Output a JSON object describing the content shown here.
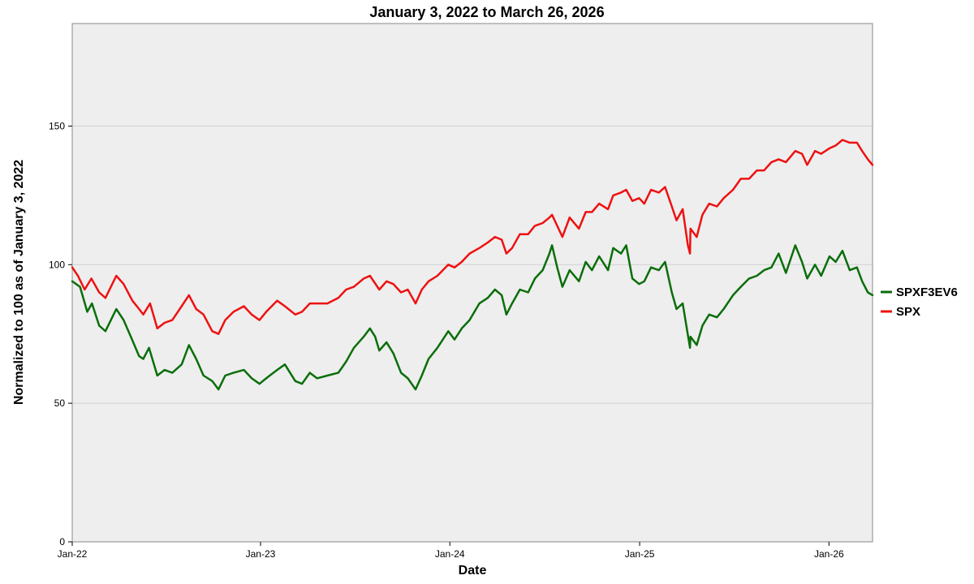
{
  "chart_data": {
    "type": "line",
    "title": "January 3, 2022 to March 26, 2026",
    "xlabel": "Date",
    "ylabel": "Normalized to 100 as of January 3, 2022",
    "ylim": [
      0,
      187
    ],
    "xlim": [
      "2022-01-03",
      "2026-03-26"
    ],
    "yticks": [
      0,
      50,
      100,
      150
    ],
    "xticks": [
      {
        "date": "2022-01-01",
        "label": "Jan-22"
      },
      {
        "date": "2023-01-01",
        "label": "Jan-23"
      },
      {
        "date": "2024-01-01",
        "label": "Jan-24"
      },
      {
        "date": "2025-01-01",
        "label": "Jan-25"
      },
      {
        "date": "2026-01-01",
        "label": "Jan-26"
      }
    ],
    "grid": true,
    "legend_position": "right",
    "plot_background": "#eeeeee",
    "series": [
      {
        "name": "SPXF3EV6",
        "color": "#0a6e0a",
        "points": [
          [
            "2022-01-03",
            94
          ],
          [
            "2022-01-18",
            92
          ],
          [
            "2022-02-01",
            83
          ],
          [
            "2022-02-10",
            86
          ],
          [
            "2022-02-24",
            78
          ],
          [
            "2022-03-08",
            76
          ],
          [
            "2022-03-29",
            84
          ],
          [
            "2022-04-12",
            80
          ],
          [
            "2022-04-26",
            74
          ],
          [
            "2022-05-12",
            67
          ],
          [
            "2022-05-20",
            66
          ],
          [
            "2022-05-31",
            70
          ],
          [
            "2022-06-16",
            60
          ],
          [
            "2022-06-30",
            62
          ],
          [
            "2022-07-15",
            61
          ],
          [
            "2022-08-02",
            64
          ],
          [
            "2022-08-16",
            71
          ],
          [
            "2022-08-30",
            66
          ],
          [
            "2022-09-13",
            60
          ],
          [
            "2022-09-30",
            58
          ],
          [
            "2022-10-12",
            55
          ],
          [
            "2022-10-25",
            60
          ],
          [
            "2022-11-10",
            61
          ],
          [
            "2022-11-30",
            62
          ],
          [
            "2022-12-15",
            59
          ],
          [
            "2022-12-30",
            57
          ],
          [
            "2023-01-12",
            59
          ],
          [
            "2023-02-02",
            62
          ],
          [
            "2023-02-17",
            64
          ],
          [
            "2023-03-09",
            58
          ],
          [
            "2023-03-22",
            57
          ],
          [
            "2023-04-06",
            61
          ],
          [
            "2023-04-20",
            59
          ],
          [
            "2023-05-10",
            60
          ],
          [
            "2023-05-31",
            61
          ],
          [
            "2023-06-15",
            65
          ],
          [
            "2023-06-30",
            70
          ],
          [
            "2023-07-19",
            74
          ],
          [
            "2023-07-31",
            77
          ],
          [
            "2023-08-10",
            74
          ],
          [
            "2023-08-18",
            69
          ],
          [
            "2023-09-01",
            72
          ],
          [
            "2023-09-14",
            68
          ],
          [
            "2023-09-29",
            61
          ],
          [
            "2023-10-12",
            59
          ],
          [
            "2023-10-27",
            55
          ],
          [
            "2023-11-08",
            60
          ],
          [
            "2023-11-21",
            66
          ],
          [
            "2023-12-08",
            70
          ],
          [
            "2023-12-29",
            76
          ],
          [
            "2024-01-10",
            73
          ],
          [
            "2024-01-24",
            77
          ],
          [
            "2024-02-08",
            80
          ],
          [
            "2024-02-27",
            86
          ],
          [
            "2024-03-14",
            88
          ],
          [
            "2024-03-28",
            91
          ],
          [
            "2024-04-10",
            89
          ],
          [
            "2024-04-19",
            82
          ],
          [
            "2024-04-30",
            86
          ],
          [
            "2024-05-15",
            91
          ],
          [
            "2024-05-31",
            90
          ],
          [
            "2024-06-13",
            95
          ],
          [
            "2024-06-28",
            98
          ],
          [
            "2024-07-11",
            104
          ],
          [
            "2024-07-16",
            107
          ],
          [
            "2024-07-26",
            99
          ],
          [
            "2024-08-05",
            92
          ],
          [
            "2024-08-19",
            98
          ],
          [
            "2024-09-06",
            94
          ],
          [
            "2024-09-19",
            101
          ],
          [
            "2024-10-01",
            98
          ],
          [
            "2024-10-15",
            103
          ],
          [
            "2024-11-01",
            98
          ],
          [
            "2024-11-11",
            106
          ],
          [
            "2024-11-26",
            104
          ],
          [
            "2024-12-06",
            107
          ],
          [
            "2024-12-18",
            95
          ],
          [
            "2024-12-31",
            93
          ],
          [
            "2025-01-10",
            94
          ],
          [
            "2025-01-23",
            99
          ],
          [
            "2025-02-07",
            98
          ],
          [
            "2025-02-19",
            101
          ],
          [
            "2025-03-04",
            90
          ],
          [
            "2025-03-13",
            84
          ],
          [
            "2025-03-25",
            86
          ],
          [
            "2025-04-08",
            70
          ],
          [
            "2025-04-09",
            74
          ],
          [
            "2025-04-21",
            71
          ],
          [
            "2025-05-02",
            78
          ],
          [
            "2025-05-15",
            82
          ],
          [
            "2025-05-30",
            81
          ],
          [
            "2025-06-12",
            84
          ],
          [
            "2025-06-30",
            89
          ],
          [
            "2025-07-15",
            92
          ],
          [
            "2025-07-31",
            95
          ],
          [
            "2025-08-15",
            96
          ],
          [
            "2025-08-29",
            98
          ],
          [
            "2025-09-12",
            99
          ],
          [
            "2025-09-26",
            104
          ],
          [
            "2025-10-10",
            97
          ],
          [
            "2025-10-28",
            107
          ],
          [
            "2025-11-10",
            101
          ],
          [
            "2025-11-20",
            95
          ],
          [
            "2025-12-05",
            100
          ],
          [
            "2025-12-17",
            96
          ],
          [
            "2026-01-02",
            103
          ],
          [
            "2026-01-14",
            101
          ],
          [
            "2026-01-27",
            105
          ],
          [
            "2026-02-10",
            98
          ],
          [
            "2026-02-24",
            99
          ],
          [
            "2026-03-06",
            94
          ],
          [
            "2026-03-17",
            90
          ],
          [
            "2026-03-26",
            89
          ]
        ]
      },
      {
        "name": "SPX",
        "color": "#ee1111",
        "points": [
          [
            "2022-01-03",
            99
          ],
          [
            "2022-01-14",
            96
          ],
          [
            "2022-01-27",
            91
          ],
          [
            "2022-02-09",
            95
          ],
          [
            "2022-02-24",
            90
          ],
          [
            "2022-03-08",
            88
          ],
          [
            "2022-03-29",
            96
          ],
          [
            "2022-04-12",
            93
          ],
          [
            "2022-04-29",
            87
          ],
          [
            "2022-05-12",
            84
          ],
          [
            "2022-05-20",
            82
          ],
          [
            "2022-06-02",
            86
          ],
          [
            "2022-06-16",
            77
          ],
          [
            "2022-06-30",
            79
          ],
          [
            "2022-07-15",
            80
          ],
          [
            "2022-08-02",
            85
          ],
          [
            "2022-08-16",
            89
          ],
          [
            "2022-08-30",
            84
          ],
          [
            "2022-09-13",
            82
          ],
          [
            "2022-09-30",
            76
          ],
          [
            "2022-10-12",
            75
          ],
          [
            "2022-10-25",
            80
          ],
          [
            "2022-11-10",
            83
          ],
          [
            "2022-11-30",
            85
          ],
          [
            "2022-12-15",
            82
          ],
          [
            "2022-12-30",
            80
          ],
          [
            "2023-01-12",
            83
          ],
          [
            "2023-02-02",
            87
          ],
          [
            "2023-02-17",
            85
          ],
          [
            "2023-03-09",
            82
          ],
          [
            "2023-03-22",
            83
          ],
          [
            "2023-04-06",
            86
          ],
          [
            "2023-04-20",
            86
          ],
          [
            "2023-05-10",
            86
          ],
          [
            "2023-05-31",
            88
          ],
          [
            "2023-06-15",
            91
          ],
          [
            "2023-06-30",
            92
          ],
          [
            "2023-07-19",
            95
          ],
          [
            "2023-07-31",
            96
          ],
          [
            "2023-08-18",
            91
          ],
          [
            "2023-09-01",
            94
          ],
          [
            "2023-09-14",
            93
          ],
          [
            "2023-09-29",
            90
          ],
          [
            "2023-10-12",
            91
          ],
          [
            "2023-10-27",
            86
          ],
          [
            "2023-11-08",
            91
          ],
          [
            "2023-11-21",
            94
          ],
          [
            "2023-12-08",
            96
          ],
          [
            "2023-12-29",
            100
          ],
          [
            "2024-01-10",
            99
          ],
          [
            "2024-01-24",
            101
          ],
          [
            "2024-02-08",
            104
          ],
          [
            "2024-02-27",
            106
          ],
          [
            "2024-03-14",
            108
          ],
          [
            "2024-03-28",
            110
          ],
          [
            "2024-04-10",
            109
          ],
          [
            "2024-04-19",
            104
          ],
          [
            "2024-04-30",
            106
          ],
          [
            "2024-05-15",
            111
          ],
          [
            "2024-05-31",
            111
          ],
          [
            "2024-06-13",
            114
          ],
          [
            "2024-06-28",
            115
          ],
          [
            "2024-07-11",
            117
          ],
          [
            "2024-07-16",
            118
          ],
          [
            "2024-07-26",
            114
          ],
          [
            "2024-08-05",
            110
          ],
          [
            "2024-08-19",
            117
          ],
          [
            "2024-09-06",
            113
          ],
          [
            "2024-09-19",
            119
          ],
          [
            "2024-10-01",
            119
          ],
          [
            "2024-10-15",
            122
          ],
          [
            "2024-11-01",
            120
          ],
          [
            "2024-11-11",
            125
          ],
          [
            "2024-11-26",
            126
          ],
          [
            "2024-12-06",
            127
          ],
          [
            "2024-12-18",
            123
          ],
          [
            "2024-12-31",
            124
          ],
          [
            "2025-01-10",
            122
          ],
          [
            "2025-01-23",
            127
          ],
          [
            "2025-02-07",
            126
          ],
          [
            "2025-02-19",
            128
          ],
          [
            "2025-03-04",
            121
          ],
          [
            "2025-03-13",
            116
          ],
          [
            "2025-03-25",
            120
          ],
          [
            "2025-04-04",
            107
          ],
          [
            "2025-04-08",
            104
          ],
          [
            "2025-04-09",
            113
          ],
          [
            "2025-04-21",
            110
          ],
          [
            "2025-05-02",
            118
          ],
          [
            "2025-05-15",
            122
          ],
          [
            "2025-05-30",
            121
          ],
          [
            "2025-06-12",
            124
          ],
          [
            "2025-06-30",
            127
          ],
          [
            "2025-07-15",
            131
          ],
          [
            "2025-07-31",
            131
          ],
          [
            "2025-08-15",
            134
          ],
          [
            "2025-08-29",
            134
          ],
          [
            "2025-09-12",
            137
          ],
          [
            "2025-09-26",
            138
          ],
          [
            "2025-10-10",
            137
          ],
          [
            "2025-10-28",
            141
          ],
          [
            "2025-11-10",
            140
          ],
          [
            "2025-11-20",
            136
          ],
          [
            "2025-12-05",
            141
          ],
          [
            "2025-12-17",
            140
          ],
          [
            "2026-01-02",
            142
          ],
          [
            "2026-01-14",
            143
          ],
          [
            "2026-01-27",
            145
          ],
          [
            "2026-02-10",
            144
          ],
          [
            "2026-02-24",
            144
          ],
          [
            "2026-03-06",
            141
          ],
          [
            "2026-03-17",
            138
          ],
          [
            "2026-03-26",
            136
          ]
        ]
      }
    ]
  }
}
